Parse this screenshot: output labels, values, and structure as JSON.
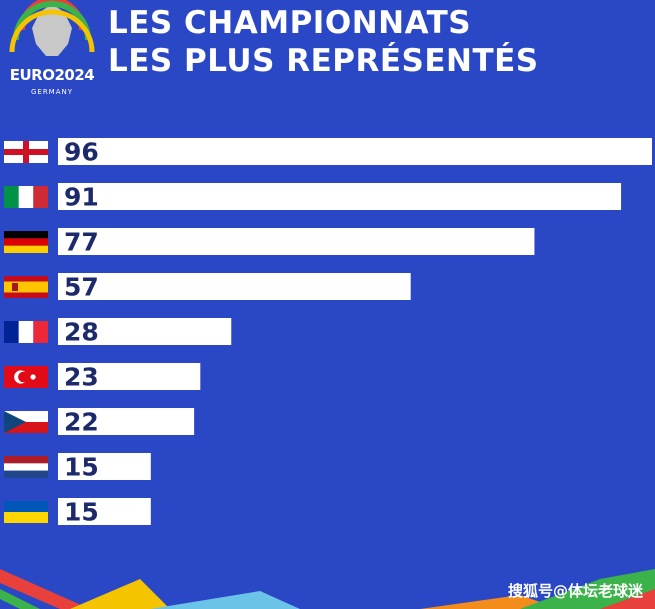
{
  "logo": {
    "text": "EURO2024",
    "subtext": "GERMANY"
  },
  "title_lines": [
    "LES CHAMPIONNATS",
    "LES PLUS REPRÉSENTÉS"
  ],
  "watermark": "搜狐号@体坛老球迷",
  "colors": {
    "background": "#2a47c6",
    "bar": "#ffffff",
    "label": "#1c2a6b"
  },
  "chart_data": {
    "type": "bar",
    "orientation": "horizontal",
    "categories": [
      "England",
      "Italy",
      "Germany",
      "Spain",
      "France",
      "Turkey",
      "Czechia",
      "Netherlands",
      "Ukraine"
    ],
    "values": [
      96,
      91,
      77,
      57,
      28,
      23,
      22,
      15,
      15
    ],
    "xlim": [
      0,
      96
    ],
    "grid": false,
    "legend": "none"
  }
}
